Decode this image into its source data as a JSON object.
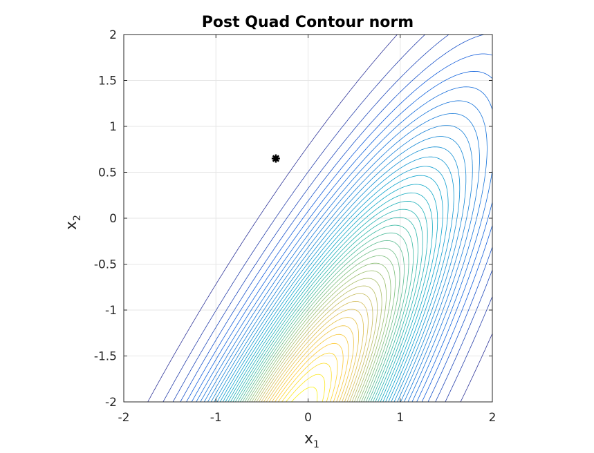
{
  "chart_data": {
    "type": "contour",
    "title": "Post Quad Contour norm",
    "xlabel": {
      "base": "x",
      "subscript": "1"
    },
    "ylabel": {
      "base": "x",
      "subscript": "2"
    },
    "xlim": [
      -2,
      2
    ],
    "ylim": [
      -2,
      2
    ],
    "x_ticks": [
      -2,
      -1,
      0,
      1,
      2
    ],
    "y_ticks": [
      -2,
      -1.5,
      -1,
      -0.5,
      0,
      0.5,
      1,
      1.5,
      2
    ],
    "x_tick_labels": [
      "-2",
      "-1",
      "0",
      "1",
      "2"
    ],
    "y_tick_labels": [
      "-2",
      "-1.5",
      "-1",
      "-0.5",
      "0",
      "0.5",
      "1",
      "1.5",
      "2"
    ],
    "grid": true,
    "colormap": "parula",
    "contour_level_count": 40,
    "field": {
      "description_of_shape": "elongated elliptic contours; high values (yellow) near bottom-centre, low values (blue) towards top-left and right",
      "center": [
        -0.35,
        -2.6
      ],
      "main_axis_direction": [
        0.55,
        1
      ],
      "sigma_along": 2.4,
      "sigma_across": 0.55
    },
    "marker": {
      "x": -0.35,
      "y": 0.65,
      "symbol": "asterisk",
      "color": "#000000"
    }
  }
}
